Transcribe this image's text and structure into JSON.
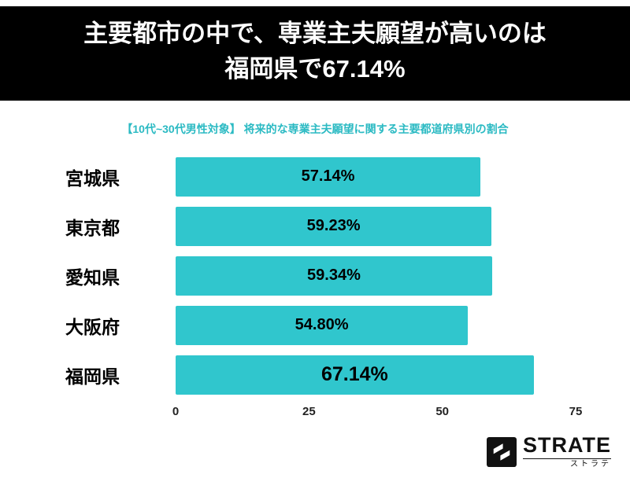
{
  "header": {
    "title_line1": "主要都市の中で、専業主夫願望が高いのは",
    "title_line2": "福岡県で67.14%"
  },
  "subtitle": "【10代~30代男性対象】 将来的な専業主夫願望に関する主要都道府県別の割合",
  "chart_data": {
    "type": "bar",
    "orientation": "horizontal",
    "title": "【10代~30代男性対象】 将来的な専業主夫願望に関する主要都道府県別の割合",
    "categories": [
      "宮城県",
      "東京都",
      "愛知県",
      "大阪府",
      "福岡県"
    ],
    "values": [
      57.14,
      59.23,
      59.34,
      54.8,
      67.14
    ],
    "value_labels": [
      "57.14%",
      "59.23%",
      "59.34%",
      "54.80%",
      "67.14%"
    ],
    "xlabel": "",
    "ylabel": "",
    "xlim": [
      0,
      75
    ],
    "ticks": [
      0,
      25,
      50,
      75
    ],
    "highlight_index": 4,
    "grid": false,
    "legend": false
  },
  "colors": {
    "bar": "#30c6cd",
    "accent_text": "#2bbac3",
    "banner_bg": "#000000",
    "banner_text": "#ffffff"
  },
  "logo": {
    "name": "STRATE",
    "subtext": "ストラテ"
  }
}
